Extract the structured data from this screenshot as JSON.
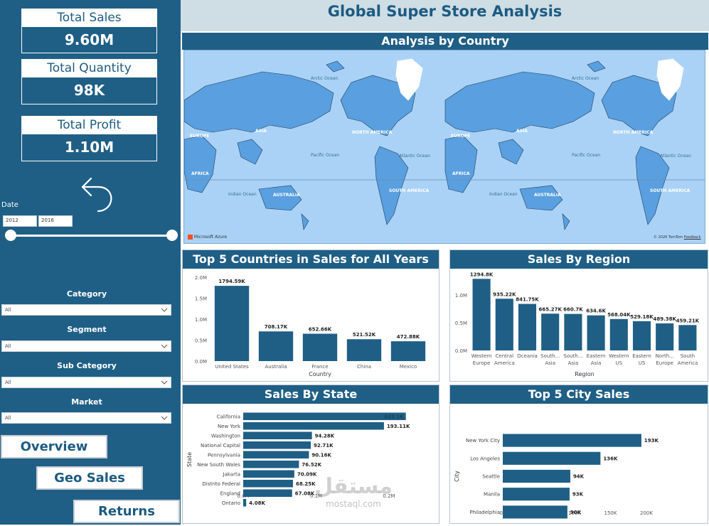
{
  "kpis": {
    "total_sales": {
      "label": "Total Sales",
      "value": "9.60M"
    },
    "total_quantity": {
      "label": "Total Quantity",
      "value": "98K"
    },
    "total_profit": {
      "label": "Total Profit",
      "value": "1.10M"
    }
  },
  "date_filter": {
    "label": "Date",
    "start": "2012",
    "end": "2016"
  },
  "filters": {
    "category": {
      "label": "Category",
      "value": "All"
    },
    "segment": {
      "label": "Segment",
      "value": "All"
    },
    "sub_category": {
      "label": "Sub Category",
      "value": "All"
    },
    "market": {
      "label": "Market",
      "value": "All"
    }
  },
  "nav": {
    "overview": "Overview",
    "geo_sales": "Geo Sales",
    "returns": "Returns"
  },
  "header": {
    "title": "Global Super Store Analysis"
  },
  "map": {
    "title": "Analysis by Country",
    "labels": {
      "europe": "EUROPE",
      "asia": "ASIA",
      "africa": "AFRICA",
      "australia": "AUSTRALIA",
      "north_america": "NORTH AMERICA",
      "south_america": "SOUTH AMERICA",
      "arctic_ocean": "Arctic Ocean",
      "pacific_ocean": "Pacific Ocean",
      "atlantic_ocean": "Atlantic Ocean",
      "indian_ocean": "Indian Ocean"
    },
    "provider": "Microsoft Azure",
    "copyright": "© 2026 TomTom",
    "feedback": "Feedback"
  },
  "colors": {
    "bar": "#1f5f86",
    "sidebar": "#1f5f86",
    "header_bg": "#cfdde4",
    "map_water": "#a9d2f6",
    "map_land": "#5a9fdf"
  },
  "chart_data": [
    {
      "id": "top5_countries",
      "type": "bar",
      "title": "Top 5 Countries in Sales for All Years",
      "xlabel": "Country",
      "ylabel": "",
      "categories": [
        "United States",
        "Australia",
        "France",
        "China",
        "Mexico"
      ],
      "values": [
        1794.59,
        708.17,
        652.66,
        521.52,
        472.88
      ],
      "data_labels": [
        "1794.59K",
        "708.17K",
        "652.66K",
        "521.52K",
        "472.88K"
      ],
      "unit": "K",
      "ylim": [
        0,
        2000
      ],
      "y_ticks": [
        {
          "v": 0,
          "label": "0.0M"
        },
        {
          "v": 500,
          "label": "0.5M"
        },
        {
          "v": 1000,
          "label": "1.0M"
        },
        {
          "v": 1500,
          "label": "1.5M"
        },
        {
          "v": 2000,
          "label": "2.0M"
        }
      ]
    },
    {
      "id": "sales_by_region",
      "type": "bar",
      "title": "Sales By Region",
      "xlabel": "Region",
      "ylabel": "",
      "categories": [
        [
          "Western",
          "Europe"
        ],
        [
          "Central",
          "America"
        ],
        [
          "Oceania"
        ],
        [
          "South...",
          "Asia"
        ],
        [
          "South...",
          "Asia"
        ],
        [
          "Eastern",
          "Asia"
        ],
        [
          "Western",
          "US"
        ],
        [
          "Eastern",
          "US"
        ],
        [
          "North...",
          "Europe"
        ],
        [
          "South",
          "America"
        ]
      ],
      "values": [
        1294.8,
        935.22,
        841.75,
        665.27,
        660.7,
        634.6,
        568.04,
        529.18,
        489.38,
        459.21
      ],
      "data_labels": [
        "1294.8K",
        "935.22K",
        "841.75K",
        "665.27K",
        "660.7K",
        "634.6K",
        "568.04K",
        "529.18K",
        "489.38K",
        "459.21K"
      ],
      "unit": "K",
      "ylim": [
        0,
        1350
      ],
      "y_ticks": [
        {
          "v": 0,
          "label": "0.0M"
        },
        {
          "v": 500,
          "label": "0.5M"
        },
        {
          "v": 1000,
          "label": "1.0M"
        }
      ]
    },
    {
      "id": "sales_by_state",
      "type": "bar",
      "orientation": "horizontal",
      "title": "Sales By State",
      "xlabel": "",
      "ylabel": "State",
      "categories": [
        "California",
        "New York",
        "Washington",
        "National Capital",
        "Pennsylvania",
        "New South Wales",
        "Jakarta",
        "Distrito Federal",
        "England",
        "Ontario"
      ],
      "values": [
        223.1,
        193.11,
        94.28,
        92.71,
        90.16,
        76.52,
        70.09,
        68.25,
        67.08,
        4.08
      ],
      "data_labels": [
        "223.1K",
        "193.11K",
        "94.28K",
        "92.71K",
        "90.16K",
        "76.52K",
        "70.09K",
        "68.25K",
        "67.08K",
        "4.08K"
      ],
      "unit": "K",
      "xlim": [
        0,
        200
      ],
      "x_ticks": [
        {
          "v": 0,
          "label": "0.0M"
        },
        {
          "v": 100,
          "label": "0.1M"
        },
        {
          "v": 200,
          "label": "0.2M"
        }
      ]
    },
    {
      "id": "top5_city_sales",
      "type": "bar",
      "orientation": "horizontal",
      "title": "Top 5 City Sales",
      "xlabel": "",
      "ylabel": "City",
      "categories": [
        "New York City",
        "Los Angeles",
        "Seattle",
        "Manila",
        "Philadelphia"
      ],
      "values": [
        193,
        136,
        94,
        93,
        90
      ],
      "data_labels": [
        "193K",
        "136K",
        "94K",
        "93K",
        "90K"
      ],
      "unit": "K",
      "xlim": [
        0,
        200
      ],
      "x_ticks": [
        {
          "v": 0,
          "label": "0K"
        },
        {
          "v": 50,
          "label": "50K"
        },
        {
          "v": 100,
          "label": "100K"
        },
        {
          "v": 150,
          "label": "150K"
        },
        {
          "v": 200,
          "label": "200K"
        }
      ]
    }
  ],
  "watermark": {
    "text": "مستقل",
    "domain": "mostaql.com"
  }
}
